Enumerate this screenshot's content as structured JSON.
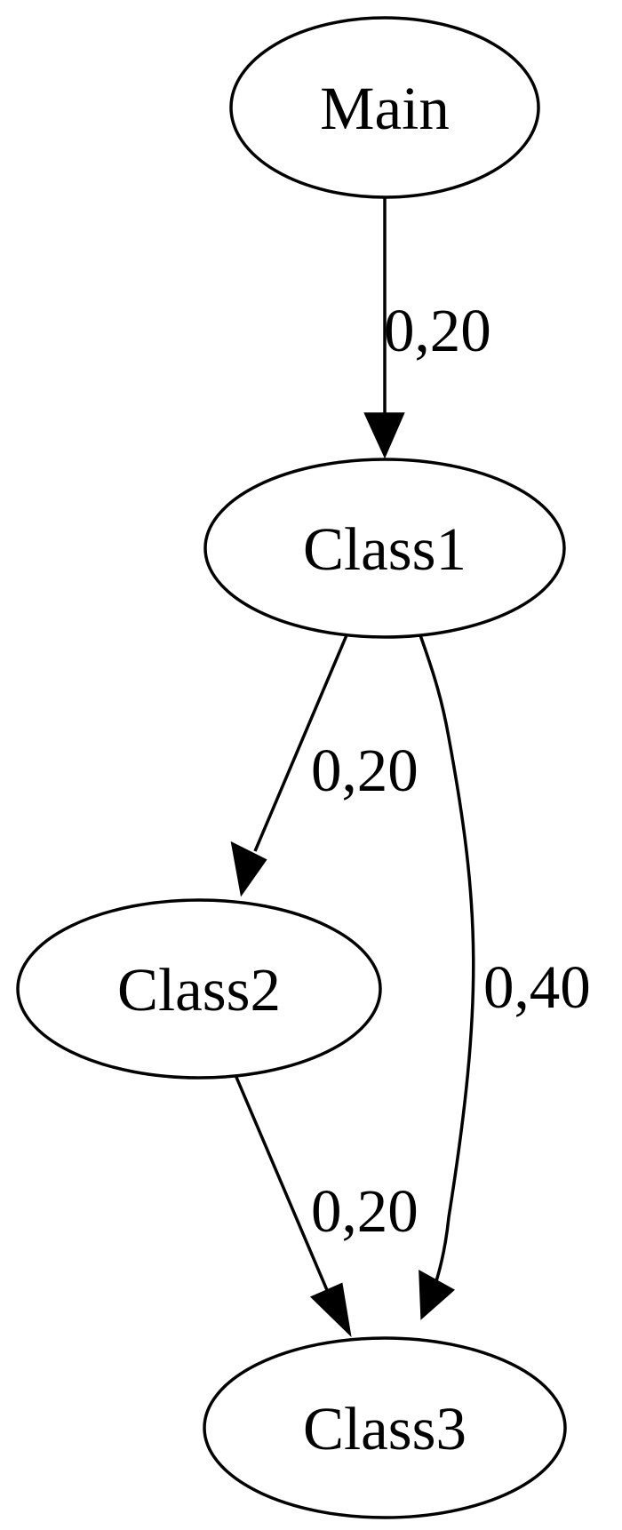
{
  "diagram": {
    "type": "directed-graph",
    "nodes": [
      {
        "id": "main",
        "label": "Main"
      },
      {
        "id": "class1",
        "label": "Class1"
      },
      {
        "id": "class2",
        "label": "Class2"
      },
      {
        "id": "class3",
        "label": "Class3"
      }
    ],
    "edges": [
      {
        "from": "main",
        "to": "class1",
        "label": "0,20"
      },
      {
        "from": "class1",
        "to": "class2",
        "label": "0,20"
      },
      {
        "from": "class1",
        "to": "class3",
        "label": "0,40"
      },
      {
        "from": "class2",
        "to": "class3",
        "label": "0,20"
      }
    ]
  }
}
